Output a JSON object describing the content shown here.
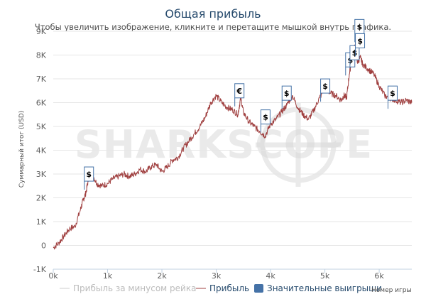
{
  "chart_data": {
    "type": "line",
    "title": "Общая прибыль",
    "subtitle": "Чтобы увеличить изображение, кликните и перетащите мышкой внутрь графика.",
    "ylabel": "Суммарный итог (USD)",
    "xlabel": "Номер игры",
    "xlim": [
      0,
      6600
    ],
    "ylim": [
      -1000,
      9000
    ],
    "x_ticks": [
      {
        "value": 0,
        "label": "0k"
      },
      {
        "value": 1000,
        "label": "1k"
      },
      {
        "value": 2000,
        "label": "2k"
      },
      {
        "value": 3000,
        "label": "3k"
      },
      {
        "value": 4000,
        "label": "4k"
      },
      {
        "value": 5000,
        "label": "5k"
      },
      {
        "value": 6000,
        "label": "6k"
      }
    ],
    "y_ticks": [
      {
        "value": -1000,
        "label": "-1K"
      },
      {
        "value": 0,
        "label": "0"
      },
      {
        "value": 1000,
        "label": "1K"
      },
      {
        "value": 2000,
        "label": "2K"
      },
      {
        "value": 3000,
        "label": "3K"
      },
      {
        "value": 4000,
        "label": "4K"
      },
      {
        "value": 5000,
        "label": "5K"
      },
      {
        "value": 6000,
        "label": "6K"
      },
      {
        "value": 7000,
        "label": "7K"
      },
      {
        "value": 8000,
        "label": "8K"
      },
      {
        "value": 9000,
        "label": "9K"
      }
    ],
    "grid": true,
    "legend_position": "bottom",
    "legend": [
      {
        "label": "Прибыль за минусом рейка",
        "color": "#cccccc",
        "kind": "line"
      },
      {
        "label": "Прибыль",
        "color": "#a04040",
        "kind": "line"
      },
      {
        "label": "Значительные выигрыши",
        "color": "#4572a7",
        "kind": "box"
      }
    ],
    "series": [
      {
        "name": "Прибыль",
        "color": "#a04040",
        "x": [
          0,
          100,
          200,
          300,
          400,
          500,
          550,
          600,
          650,
          700,
          800,
          900,
          1000,
          1100,
          1200,
          1300,
          1400,
          1500,
          1600,
          1700,
          1800,
          1900,
          2000,
          2100,
          2200,
          2300,
          2400,
          2500,
          2600,
          2700,
          2800,
          2900,
          3000,
          3100,
          3200,
          3300,
          3400,
          3450,
          3500,
          3600,
          3700,
          3800,
          3900,
          4000,
          4100,
          4200,
          4300,
          4400,
          4500,
          4600,
          4700,
          4800,
          4900,
          5000,
          5100,
          5200,
          5300,
          5350,
          5400,
          5450,
          5500,
          5550,
          5600,
          5650,
          5700,
          5800,
          5900,
          6000,
          6100,
          6200,
          6300,
          6400,
          6500,
          6600
        ],
        "y": [
          -100,
          100,
          400,
          700,
          800,
          1500,
          1900,
          2200,
          2800,
          3100,
          2600,
          2500,
          2600,
          2800,
          2900,
          3000,
          2900,
          3000,
          3200,
          3100,
          3300,
          3400,
          3100,
          3300,
          3600,
          3700,
          4100,
          4400,
          4700,
          5000,
          5400,
          6000,
          6300,
          6000,
          5800,
          5700,
          5500,
          6200,
          5600,
          5200,
          5000,
          4800,
          4600,
          5100,
          5300,
          5600,
          5900,
          6300,
          5800,
          5500,
          5300,
          5700,
          6200,
          6600,
          6400,
          6300,
          6100,
          6300,
          6200,
          7200,
          7900,
          8400,
          7700,
          7900,
          7600,
          7400,
          7200,
          6700,
          6300,
          6200,
          6100,
          6000,
          6100,
          6000
        ]
      }
    ],
    "flags": [
      {
        "x": 650,
        "y": 2700,
        "label": "$"
      },
      {
        "x": 3420,
        "y": 6200,
        "label": "€"
      },
      {
        "x": 3900,
        "y": 5100,
        "label": "$"
      },
      {
        "x": 4290,
        "y": 6100,
        "label": "$"
      },
      {
        "x": 5000,
        "y": 6400,
        "label": "$"
      },
      {
        "x": 5460,
        "y": 7500,
        "label": "$"
      },
      {
        "x": 5540,
        "y": 7800,
        "label": "$"
      },
      {
        "x": 5640,
        "y": 8300,
        "label": "$"
      },
      {
        "x": 5630,
        "y": 8900,
        "label": "$"
      },
      {
        "x": 6240,
        "y": 6100,
        "label": "$"
      }
    ]
  },
  "watermark": "SHARKSCOPE"
}
